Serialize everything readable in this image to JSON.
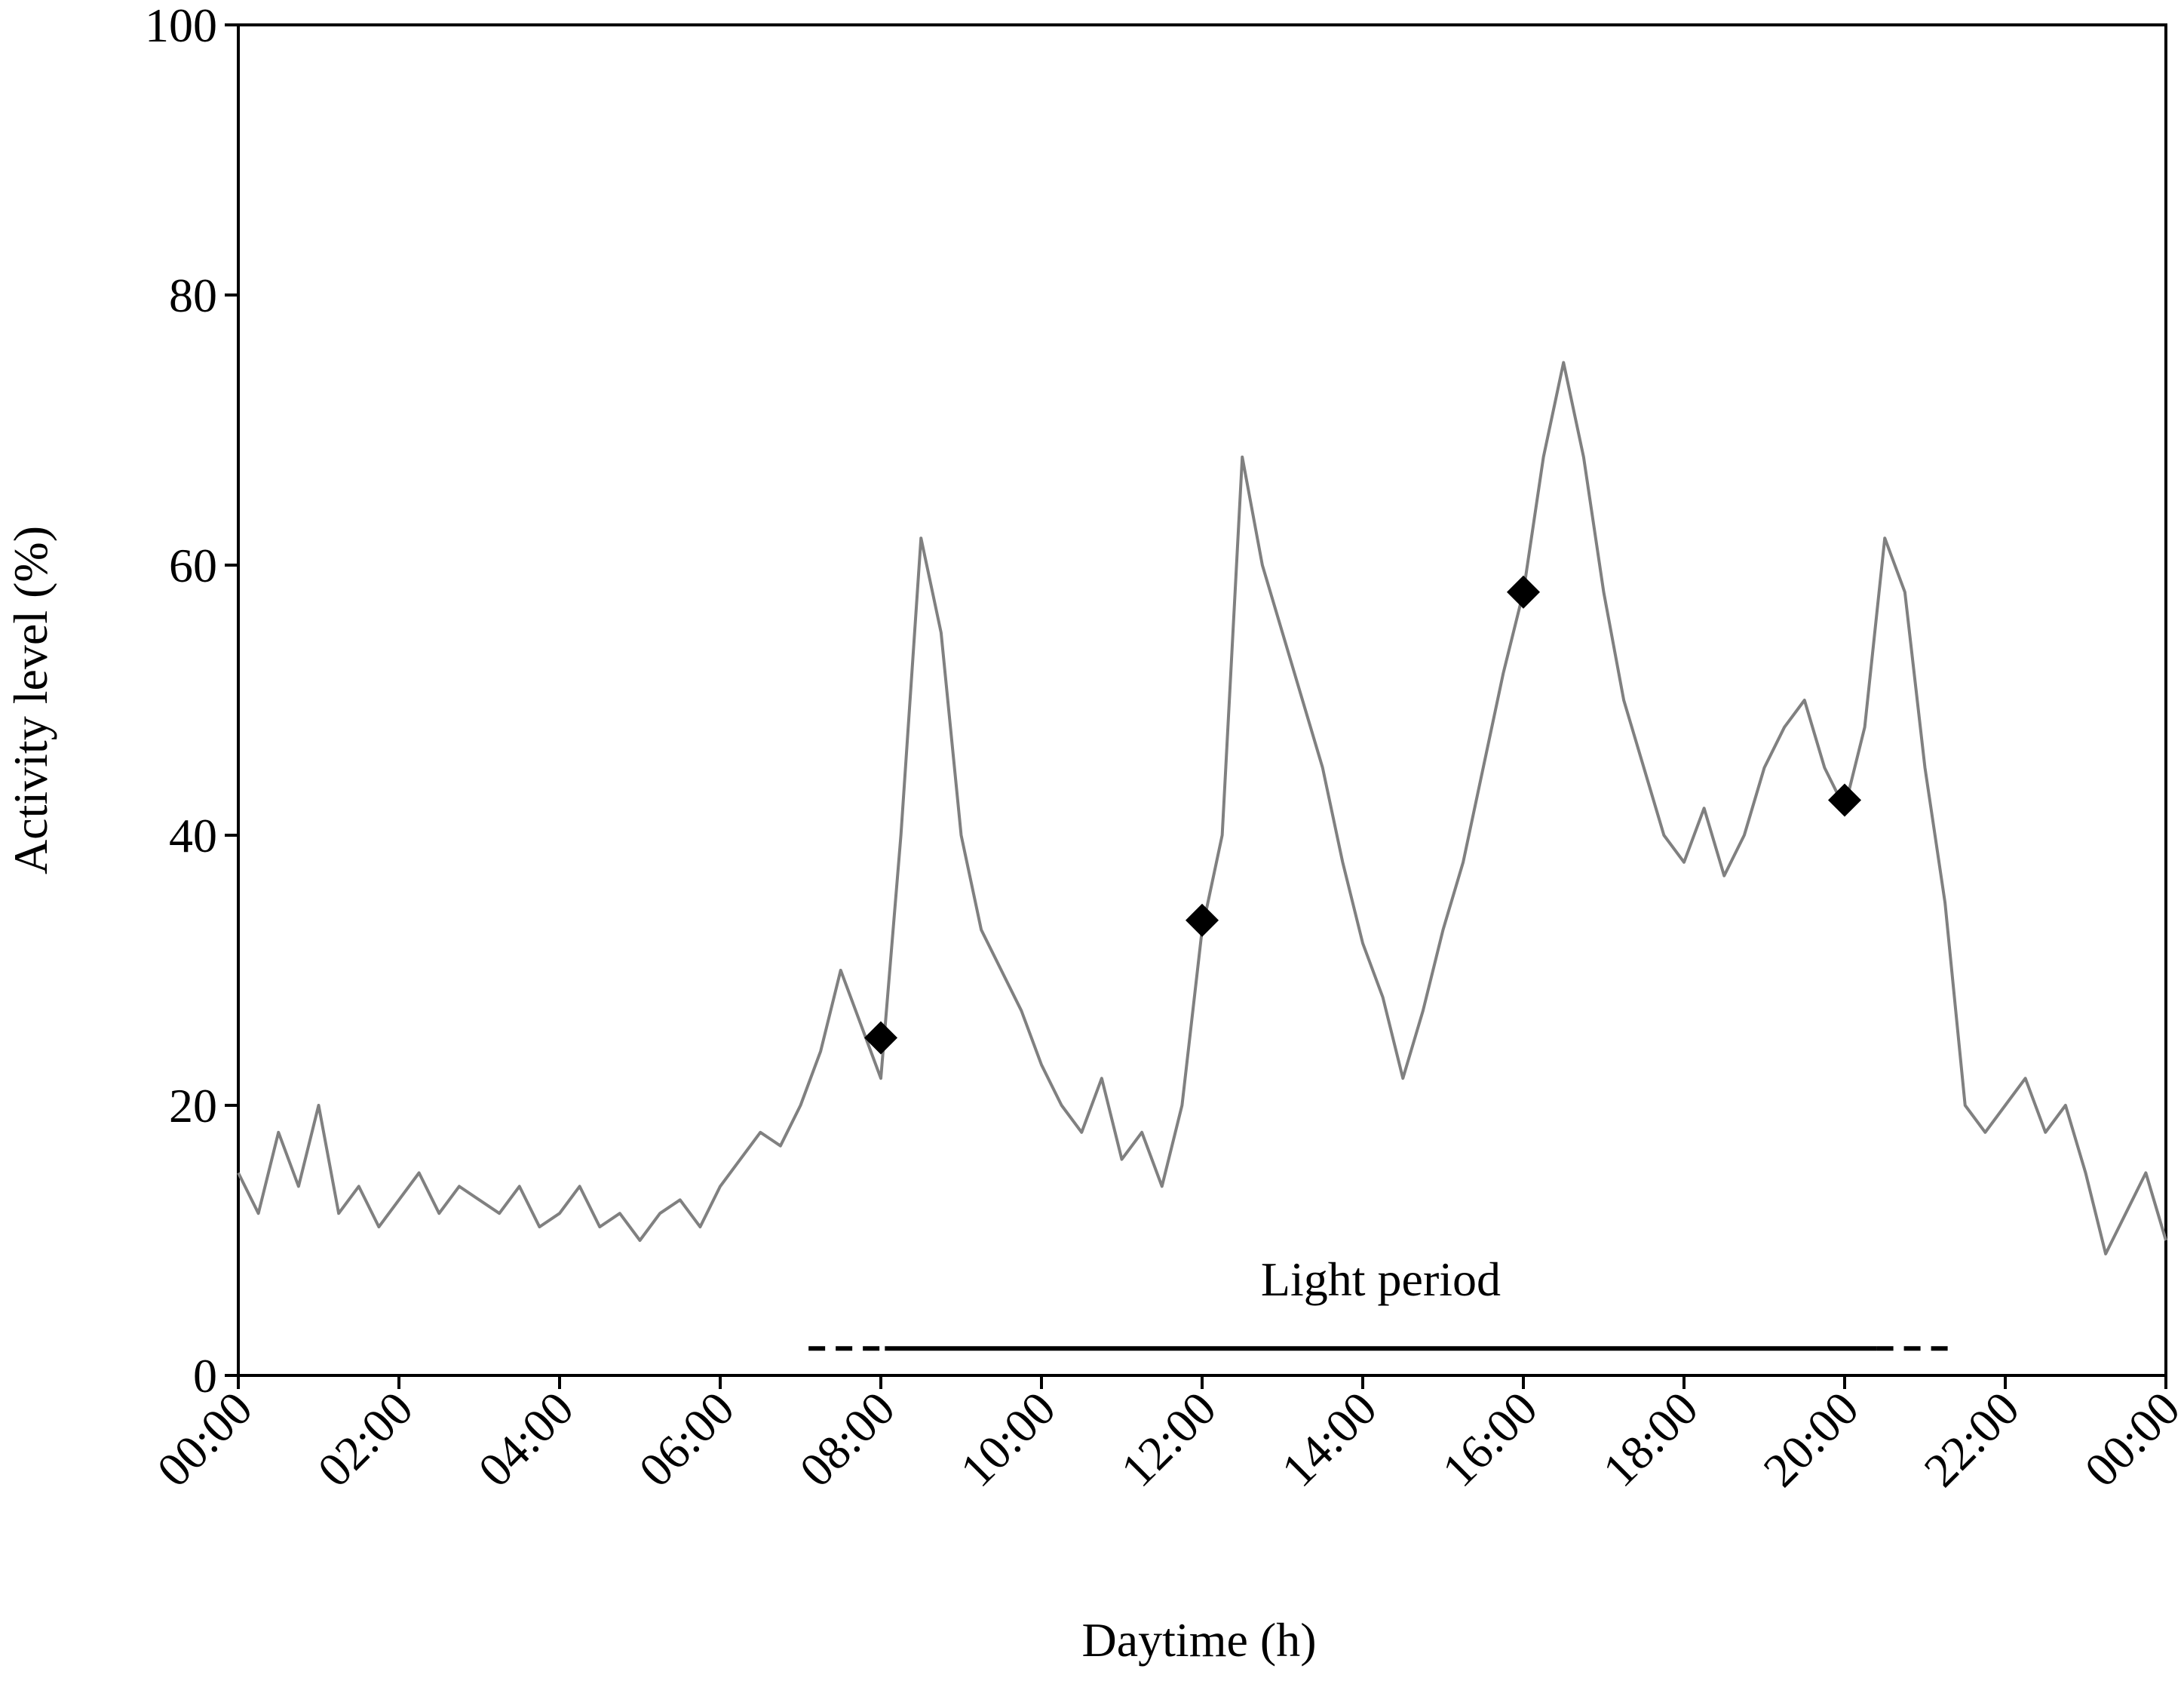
{
  "chart_data": {
    "type": "line",
    "xlabel": "Daytime (h)",
    "ylabel": "Activity level (%)",
    "annotation": "Light period",
    "xlim": [
      0,
      24
    ],
    "ylim": [
      0,
      100
    ],
    "yticks": [
      0,
      20,
      40,
      60,
      80,
      100
    ],
    "xticks": [
      {
        "value": 0,
        "label": "00:00"
      },
      {
        "value": 2,
        "label": "02:00"
      },
      {
        "value": 4,
        "label": "04:00"
      },
      {
        "value": 6,
        "label": "06:00"
      },
      {
        "value": 8,
        "label": "08:00"
      },
      {
        "value": 10,
        "label": "10:00"
      },
      {
        "value": 12,
        "label": "12:00"
      },
      {
        "value": 14,
        "label": "14:00"
      },
      {
        "value": 16,
        "label": "16:00"
      },
      {
        "value": 18,
        "label": "18:00"
      },
      {
        "value": 20,
        "label": "20:00"
      },
      {
        "value": 22,
        "label": "22:00"
      },
      {
        "value": 24,
        "label": "00:00"
      }
    ],
    "series": [
      {
        "color": "#808080",
        "marker": "none",
        "x": [
          0,
          0.25,
          0.5,
          0.75,
          1,
          1.25,
          1.5,
          1.75,
          2,
          2.25,
          2.5,
          2.75,
          3,
          3.25,
          3.5,
          3.75,
          4,
          4.25,
          4.5,
          4.75,
          5,
          5.25,
          5.5,
          5.75,
          6,
          6.25,
          6.5,
          6.75,
          7,
          7.25,
          7.5,
          7.75,
          8,
          8.25,
          8.5,
          8.75,
          9,
          9.25,
          9.5,
          9.75,
          10,
          10.25,
          10.5,
          10.75,
          11,
          11.25,
          11.5,
          11.75,
          12,
          12.25,
          12.5,
          12.75,
          13,
          13.25,
          13.5,
          13.75,
          14,
          14.25,
          14.5,
          14.75,
          15,
          15.25,
          15.5,
          15.75,
          16,
          16.25,
          16.5,
          16.75,
          17,
          17.25,
          17.5,
          17.75,
          18,
          18.25,
          18.5,
          18.75,
          19,
          19.25,
          19.5,
          19.75,
          20,
          20.25,
          20.5,
          20.75,
          21,
          21.25,
          21.5,
          21.75,
          22,
          22.25,
          22.5,
          22.75,
          23,
          23.25,
          23.5,
          23.75,
          24
        ],
        "values": [
          15,
          12,
          18,
          14,
          20,
          12,
          14,
          11,
          13,
          15,
          12,
          14,
          13,
          12,
          14,
          11,
          12,
          14,
          11,
          12,
          10,
          12,
          13,
          11,
          14,
          16,
          18,
          17,
          20,
          24,
          30,
          26,
          22,
          40,
          62,
          55,
          40,
          33,
          30,
          27,
          23,
          20,
          18,
          22,
          16,
          18,
          14,
          20,
          33,
          40,
          68,
          60,
          55,
          50,
          45,
          38,
          32,
          28,
          22,
          27,
          33,
          38,
          45,
          52,
          58,
          68,
          75,
          68,
          58,
          50,
          45,
          40,
          38,
          42,
          37,
          40,
          45,
          48,
          50,
          45,
          42,
          48,
          62,
          58,
          45,
          35,
          20,
          18,
          20,
          22,
          18,
          20,
          15,
          9,
          12,
          15,
          10
        ]
      },
      {
        "color": "#000000",
        "marker": "diamond",
        "x": [
          8,
          12,
          16,
          20
        ],
        "values": [
          25,
          33.7,
          58,
          42.6
        ]
      }
    ],
    "light_period": {
      "y": 2,
      "solid": [
        8.05,
        20.4
      ],
      "dashed": [
        [
          7.1,
          8.05
        ],
        [
          20.4,
          21.4
        ]
      ]
    }
  }
}
